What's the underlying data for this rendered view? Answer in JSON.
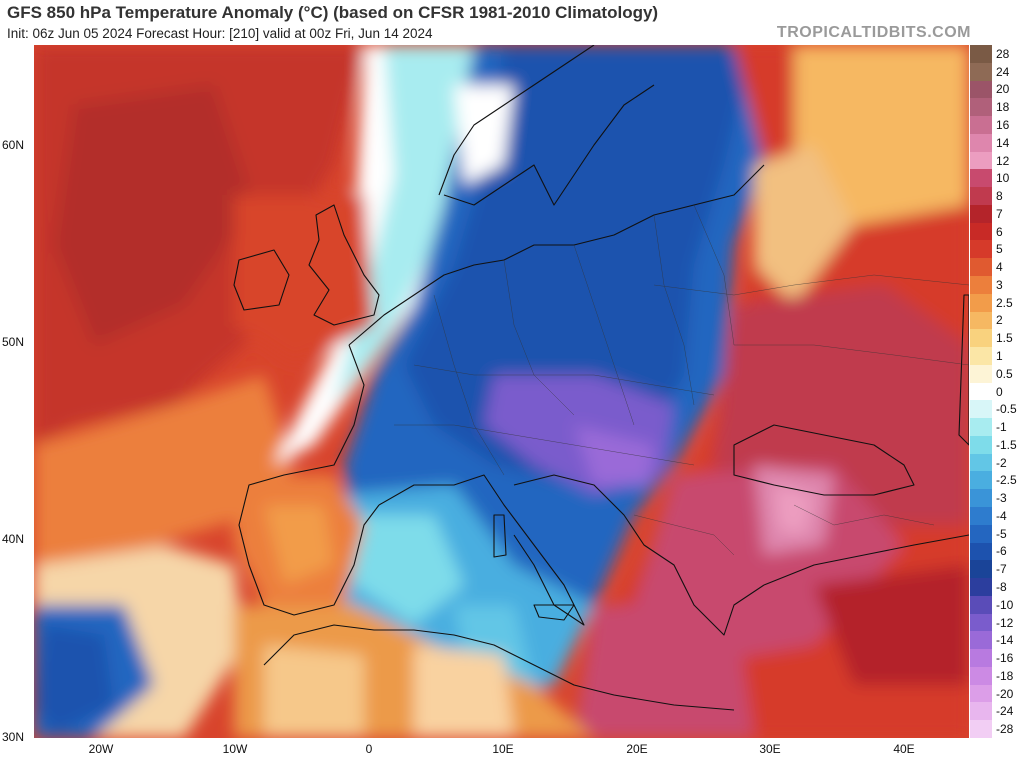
{
  "header": {
    "title": "GFS 850 hPa Temperature Anomaly (°C) (based on CFSR 1981-2010 Climatology)",
    "subtitle": "Init: 06z Jun 05 2024   Forecast Hour: [210]   valid at 00z Fri, Jun 14 2024",
    "brand": "TROPICALTIDBITS.COM"
  },
  "axes": {
    "lat_labels": [
      "60N",
      "50N",
      "40N",
      "30N"
    ],
    "lon_labels": [
      "20W",
      "10W",
      "0",
      "10E",
      "20E",
      "30E",
      "40E"
    ]
  },
  "colorbar": {
    "labels": [
      "28",
      "24",
      "20",
      "18",
      "16",
      "14",
      "12",
      "10",
      "8",
      "7",
      "6",
      "5",
      "4",
      "3",
      "2.5",
      "2",
      "1.5",
      "1",
      "0.5",
      "0",
      "-0.5",
      "-1",
      "-1.5",
      "-2",
      "-2.5",
      "-3",
      "-4",
      "-5",
      "-6",
      "-7",
      "-8",
      "-10",
      "-12",
      "-14",
      "-16",
      "-18",
      "-20",
      "-24",
      "-28"
    ],
    "colors": [
      "#7a5a45",
      "#8e6a55",
      "#9b5468",
      "#b0607a",
      "#c96f92",
      "#de86ad",
      "#ec9dc0",
      "#c84a6e",
      "#c03a4e",
      "#b4242a",
      "#c82a26",
      "#d63a2a",
      "#e05a30",
      "#ec7f3c",
      "#f29c4a",
      "#f6b862",
      "#f9d27e",
      "#fbe6a6",
      "#fdf4d6",
      "#ffffff",
      "#d8f6f8",
      "#a8ecf0",
      "#7edcea",
      "#62c6e6",
      "#4aaee0",
      "#3a94d8",
      "#2e7cce",
      "#2466c0",
      "#1d52ae",
      "#1a4498",
      "#2c3e9e",
      "#5a4cb8",
      "#7a5ccc",
      "#9a6ad8",
      "#b87ae0",
      "#cc8ae4",
      "#dc9ee8",
      "#e8b6ee",
      "#f2cef4"
    ]
  }
}
